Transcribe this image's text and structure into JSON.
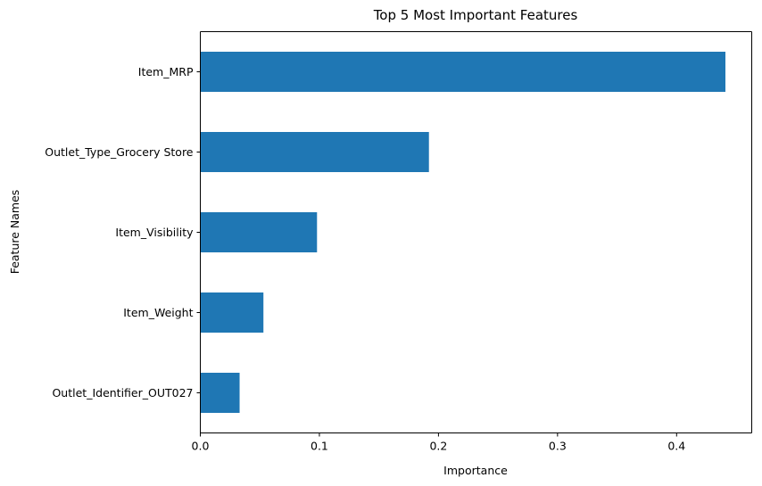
{
  "chart_data": {
    "type": "bar",
    "orientation": "horizontal",
    "title": "Top 5 Most Important Features",
    "xlabel": "Importance",
    "ylabel": "Feature Names",
    "categories": [
      "Outlet_Identifier_OUT027",
      "Item_Weight",
      "Item_Visibility",
      "Outlet_Type_Grocery Store",
      "Item_MRP"
    ],
    "values": [
      0.033,
      0.053,
      0.098,
      0.192,
      0.441
    ],
    "xlim": [
      0,
      0.4631
    ],
    "xticks": [
      0.0,
      0.1,
      0.2,
      0.3,
      0.4
    ],
    "xtick_labels": [
      "0.0",
      "0.1",
      "0.2",
      "0.3",
      "0.4"
    ],
    "grid": false,
    "legend": "none",
    "bar_color": "#1f77b4"
  }
}
